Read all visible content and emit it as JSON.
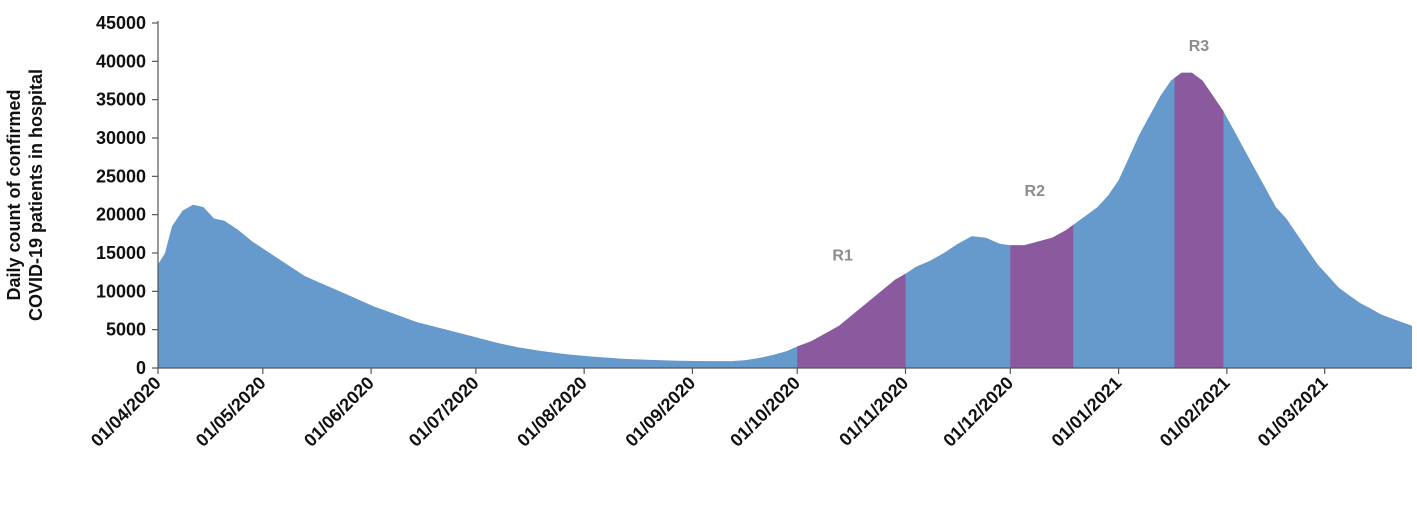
{
  "chart_data": {
    "type": "area",
    "title": "",
    "xlabel": "",
    "ylabel": [
      "Daily count of confirmed",
      "COVID-19 patients in hospital"
    ],
    "ylim": [
      0,
      45000
    ],
    "y_ticks": [
      0,
      5000,
      10000,
      15000,
      20000,
      25000,
      30000,
      35000,
      40000,
      45000
    ],
    "x_range": [
      "2020-04-01",
      "2021-03-26"
    ],
    "x_tick_labels": [
      "01/04/2020",
      "01/05/2020",
      "01/06/2020",
      "01/07/2020",
      "01/08/2020",
      "01/09/2020",
      "01/10/2020",
      "01/11/2020",
      "01/12/2020",
      "01/01/2021",
      "01/02/2021",
      "01/03/2021"
    ],
    "colors": {
      "base": "#6699cc",
      "highlight": "#8b5a9e",
      "axis": "#555555",
      "region_label": "#8c8c8c"
    },
    "series": [
      {
        "points": [
          [
            "2020-04-01",
            13500
          ],
          [
            "2020-04-03",
            15000
          ],
          [
            "2020-04-05",
            18500
          ],
          [
            "2020-04-08",
            20500
          ],
          [
            "2020-04-11",
            21300
          ],
          [
            "2020-04-14",
            21000
          ],
          [
            "2020-04-17",
            19500
          ],
          [
            "2020-04-20",
            19200
          ],
          [
            "2020-04-24",
            18000
          ],
          [
            "2020-04-28",
            16500
          ],
          [
            "2020-05-03",
            15000
          ],
          [
            "2020-05-08",
            13500
          ],
          [
            "2020-05-13",
            12000
          ],
          [
            "2020-05-18",
            11000
          ],
          [
            "2020-05-23",
            10000
          ],
          [
            "2020-05-28",
            9000
          ],
          [
            "2020-06-02",
            8000
          ],
          [
            "2020-06-08",
            7000
          ],
          [
            "2020-06-14",
            6000
          ],
          [
            "2020-06-20",
            5300
          ],
          [
            "2020-06-26",
            4600
          ],
          [
            "2020-07-01",
            4000
          ],
          [
            "2020-07-07",
            3300
          ],
          [
            "2020-07-13",
            2700
          ],
          [
            "2020-07-20",
            2200
          ],
          [
            "2020-07-27",
            1800
          ],
          [
            "2020-08-03",
            1500
          ],
          [
            "2020-08-12",
            1200
          ],
          [
            "2020-08-20",
            1050
          ],
          [
            "2020-08-28",
            950
          ],
          [
            "2020-09-05",
            900
          ],
          [
            "2020-09-12",
            900
          ],
          [
            "2020-09-16",
            1000
          ],
          [
            "2020-09-20",
            1300
          ],
          [
            "2020-09-24",
            1700
          ],
          [
            "2020-09-28",
            2200
          ],
          [
            "2020-10-01",
            2800
          ],
          [
            "2020-10-05",
            3500
          ],
          [
            "2020-10-09",
            4500
          ],
          [
            "2020-10-13",
            5500
          ],
          [
            "2020-10-17",
            7000
          ],
          [
            "2020-10-21",
            8500
          ],
          [
            "2020-10-25",
            10000
          ],
          [
            "2020-10-29",
            11500
          ],
          [
            "2020-11-01",
            12300
          ],
          [
            "2020-11-04",
            13200
          ],
          [
            "2020-11-08",
            14000
          ],
          [
            "2020-11-12",
            15000
          ],
          [
            "2020-11-16",
            16200
          ],
          [
            "2020-11-20",
            17200
          ],
          [
            "2020-11-24",
            17000
          ],
          [
            "2020-11-28",
            16200
          ],
          [
            "2020-12-01",
            16000
          ],
          [
            "2020-12-05",
            16000
          ],
          [
            "2020-12-09",
            16500
          ],
          [
            "2020-12-13",
            17000
          ],
          [
            "2020-12-17",
            18000
          ],
          [
            "2020-12-20",
            19000
          ],
          [
            "2020-12-23",
            20000
          ],
          [
            "2020-12-26",
            21000
          ],
          [
            "2020-12-29",
            22500
          ],
          [
            "2021-01-01",
            24500
          ],
          [
            "2021-01-04",
            27500
          ],
          [
            "2021-01-07",
            30500
          ],
          [
            "2021-01-10",
            33000
          ],
          [
            "2021-01-13",
            35500
          ],
          [
            "2021-01-16",
            37500
          ],
          [
            "2021-01-19",
            38500
          ],
          [
            "2021-01-22",
            38500
          ],
          [
            "2021-01-25",
            37500
          ],
          [
            "2021-01-28",
            35500
          ],
          [
            "2021-01-31",
            33500
          ],
          [
            "2021-02-03",
            31000
          ],
          [
            "2021-02-06",
            28500
          ],
          [
            "2021-02-09",
            26000
          ],
          [
            "2021-02-12",
            23500
          ],
          [
            "2021-02-15",
            21000
          ],
          [
            "2021-02-18",
            19500
          ],
          [
            "2021-02-21",
            17500
          ],
          [
            "2021-02-24",
            15500
          ],
          [
            "2021-02-27",
            13500
          ],
          [
            "2021-03-02",
            12000
          ],
          [
            "2021-03-05",
            10500
          ],
          [
            "2021-03-08",
            9500
          ],
          [
            "2021-03-11",
            8500
          ],
          [
            "2021-03-14",
            7800
          ],
          [
            "2021-03-17",
            7000
          ],
          [
            "2021-03-20",
            6500
          ],
          [
            "2021-03-23",
            6000
          ],
          [
            "2021-03-26",
            5500
          ]
        ]
      }
    ],
    "highlighted_regions": [
      {
        "label": "R1",
        "start": "2020-10-01",
        "end": "2020-11-01",
        "label_x": "2020-10-14",
        "label_y": 14700
      },
      {
        "label": "R2",
        "start": "2020-12-01",
        "end": "2020-12-19",
        "label_x": "2020-12-08",
        "label_y": 23100
      },
      {
        "label": "R3",
        "start": "2021-01-17",
        "end": "2021-01-31",
        "label_x": "2021-01-24",
        "label_y": 42000
      }
    ]
  }
}
